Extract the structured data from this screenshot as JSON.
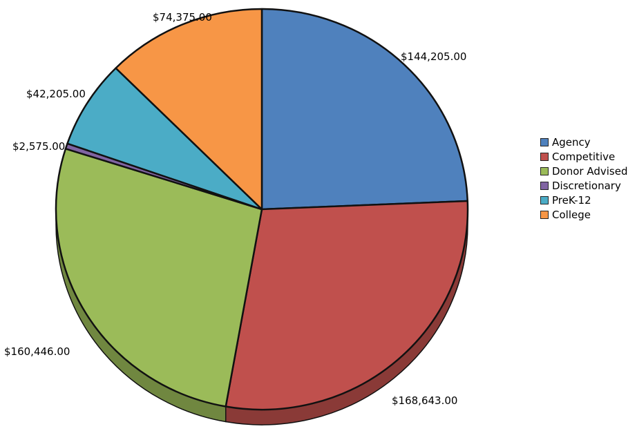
{
  "chart_data": {
    "type": "pie",
    "title": "",
    "series": [
      {
        "name": "Agency",
        "value": 144205.0,
        "label": "$144,205.00",
        "color": "#4f81bd"
      },
      {
        "name": "Competitive",
        "value": 168643.0,
        "label": "$168,643.00",
        "color": "#c0504d"
      },
      {
        "name": "Donor Advised",
        "value": 160446.0,
        "label": "$160,446.00",
        "color": "#9bbb59"
      },
      {
        "name": "Discretionary",
        "value": 2575.0,
        "label": "$2,575.00",
        "color": "#8064a2"
      },
      {
        "name": "PreK-12",
        "value": 42205.0,
        "label": "$42,205.00",
        "color": "#4bacc6"
      },
      {
        "name": "College",
        "value": 74375.0,
        "label": "$74,375.00",
        "color": "#f79646"
      }
    ],
    "legend_position": "right"
  }
}
